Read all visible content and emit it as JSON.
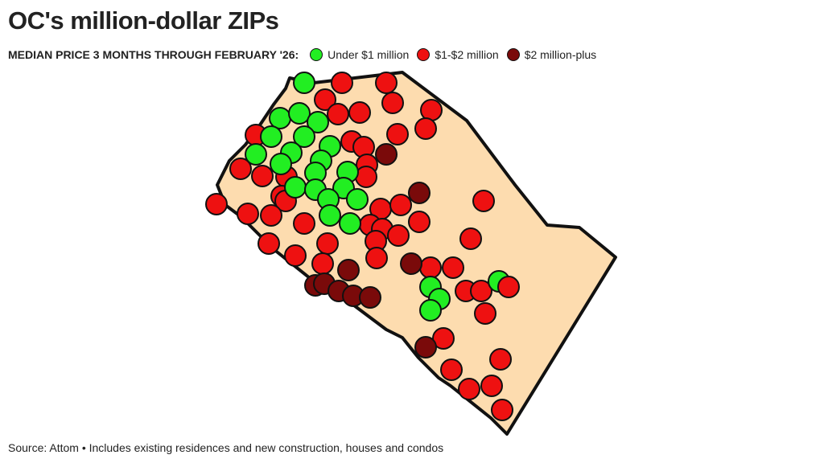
{
  "title": "OC's million-dollar ZIPs",
  "legend": {
    "title": "MEDIAN PRICE 3 MONTHS THROUGH FEBRUARY '26:",
    "items": [
      {
        "label": "Under $1 million",
        "color": "#22ee22"
      },
      {
        "label": "$1-$2 million",
        "color": "#ee1111"
      },
      {
        "label": "$2 million-plus",
        "color": "#7a0a0a"
      }
    ]
  },
  "source": "Source: Attom • Includes existing residences and new construction, houses and condos"
}
